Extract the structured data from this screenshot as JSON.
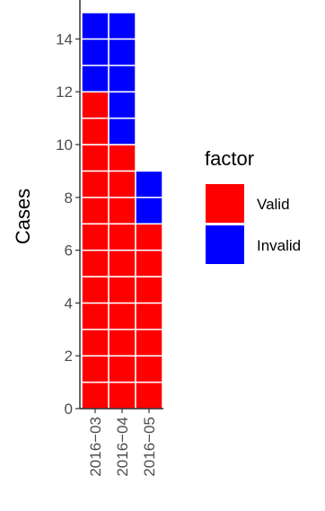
{
  "chart_data": {
    "type": "bar",
    "subtype": "stacked-unit-tiles",
    "categories": [
      "2016−03",
      "2016−04",
      "2016−05"
    ],
    "series": [
      {
        "name": "Valid",
        "values": [
          12,
          10,
          7
        ],
        "color": "#FF0000"
      },
      {
        "name": "Invalid",
        "values": [
          3,
          5,
          2
        ],
        "color": "#0000FF"
      }
    ],
    "ylabel": "Cases",
    "xlabel": "",
    "ylim": [
      0,
      15
    ],
    "yticks": [
      0,
      2,
      4,
      6,
      8,
      10,
      12,
      14
    ],
    "yticklabels": [
      "0",
      "2",
      "4",
      "6",
      "8",
      "10",
      "12",
      "14"
    ],
    "legend": {
      "title": "factor",
      "position": "right"
    },
    "grid": false
  }
}
